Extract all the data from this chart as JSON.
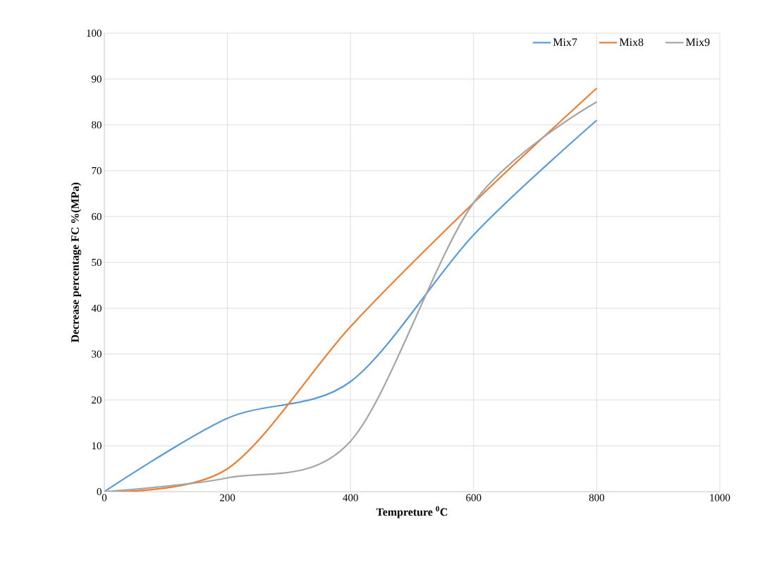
{
  "chart_data": {
    "type": "line",
    "xlabel": "Tempreture $^{0}$C",
    "ylabel": "Decrease percentage FC %(MPa)",
    "x": [
      0,
      200,
      400,
      600,
      800
    ],
    "series": [
      {
        "name": "Mix7",
        "color": "#5b9bd5",
        "values": [
          0,
          16,
          24,
          56,
          81
        ]
      },
      {
        "name": "Mix8",
        "color": "#ed7d31",
        "values": [
          0,
          5,
          36,
          63,
          88
        ]
      },
      {
        "name": "Mix9",
        "color": "#a5a5a5",
        "values": [
          0,
          3,
          11,
          63,
          85
        ]
      }
    ],
    "xlim": [
      0,
      1000
    ],
    "xticks": [
      0,
      200,
      400,
      600,
      800,
      1000
    ],
    "ylim": [
      0,
      100
    ],
    "yticks": [
      0,
      10,
      20,
      30,
      40,
      50,
      60,
      70,
      80,
      90,
      100
    ],
    "grid": true,
    "legend": "top right",
    "marker": "none",
    "line_style": "solid"
  }
}
